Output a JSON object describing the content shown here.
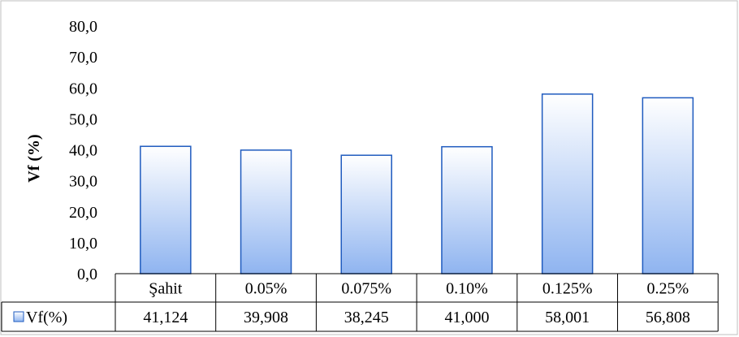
{
  "chart_data": {
    "type": "bar",
    "categories": [
      "Şahit",
      "0.05%",
      "0.075%",
      "0.10%",
      "0.125%",
      "0.25%"
    ],
    "series": [
      {
        "name": "Vf(%)",
        "values": [
          41.124,
          39.908,
          38.245,
          41.0,
          58.001,
          56.808
        ],
        "value_labels": [
          "41,124",
          "39,908",
          "38,245",
          "41,000",
          "58,001",
          "56,808"
        ]
      }
    ],
    "ylabel": "Vf (%)",
    "xlabel": "",
    "ylim": [
      0,
      80
    ],
    "yticks": [
      "0,0",
      "10,0",
      "20,0",
      "30,0",
      "40,0",
      "50,0",
      "60,0",
      "70,0",
      "80,0"
    ],
    "grid": false,
    "legend": "data-table-left",
    "colors": {
      "bar_top": "#ffffff",
      "bar_bottom": "#8fb4f0",
      "bar_stroke": "#1f5bbf",
      "border": "#bfbfbf"
    }
  }
}
